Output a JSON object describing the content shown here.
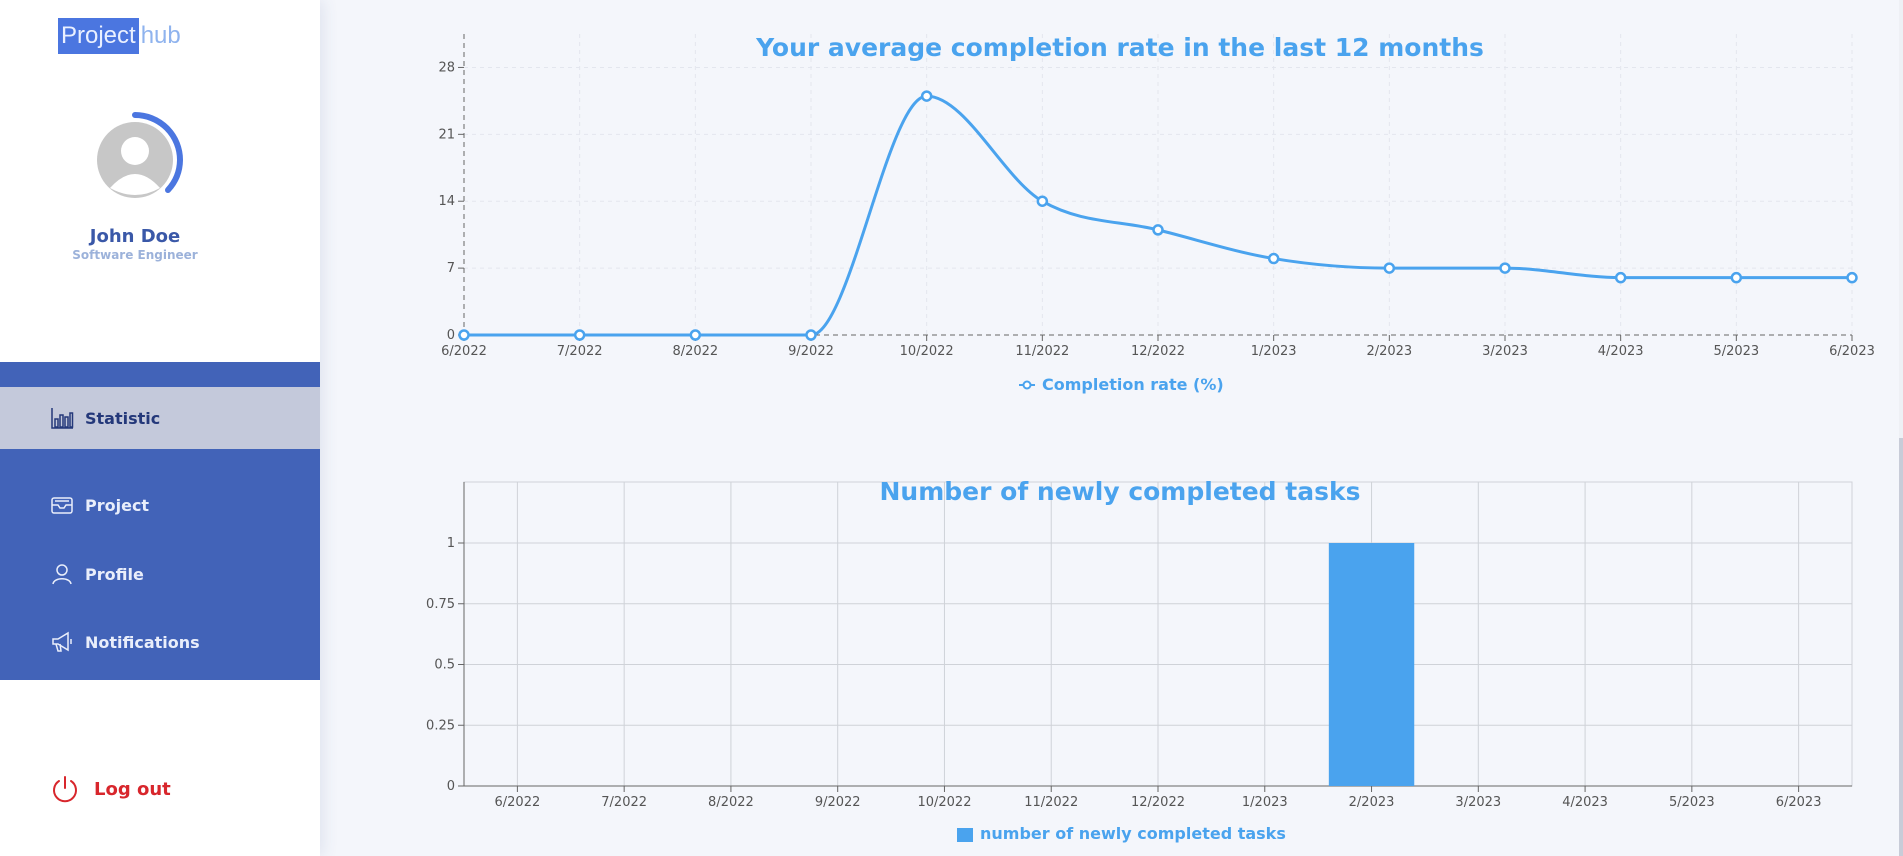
{
  "app": {
    "logo_part1": "Project",
    "logo_part2": "hub"
  },
  "user": {
    "name": "John Doe",
    "role": "Software Engineer"
  },
  "nav": {
    "items": [
      {
        "label": "Statistic",
        "icon": "bar-chart-icon",
        "active": true
      },
      {
        "label": "Project",
        "icon": "inbox-tray-icon",
        "active": false
      },
      {
        "label": "Profile",
        "icon": "user-icon",
        "active": false
      },
      {
        "label": "Notifications",
        "icon": "megaphone-icon",
        "active": false
      }
    ],
    "logout_label": "Log out"
  },
  "colors": {
    "accent": "#4aa3ee",
    "sidebar_blue": "#4263b8",
    "active_item": "#c4c9db",
    "logout_red": "#d8262c"
  },
  "chart_data": [
    {
      "type": "line",
      "title": "Your average completion rate in the last 12 months",
      "x": [
        "6/2022",
        "7/2022",
        "8/2022",
        "9/2022",
        "10/2022",
        "11/2022",
        "12/2022",
        "1/2023",
        "2/2023",
        "3/2023",
        "4/2023",
        "5/2023",
        "6/2023"
      ],
      "series": [
        {
          "name": "Completion rate (%)",
          "values": [
            0,
            0,
            0,
            0,
            25,
            14,
            11,
            8,
            7,
            7,
            6,
            6,
            6
          ]
        }
      ],
      "ylim": [
        0,
        31.5
      ],
      "yticks": [
        0,
        7,
        14,
        21,
        28
      ],
      "grid": true,
      "legend": "bottom-center"
    },
    {
      "type": "bar",
      "title": "Number of newly completed tasks",
      "categories": [
        "6/2022",
        "7/2022",
        "8/2022",
        "9/2022",
        "10/2022",
        "11/2022",
        "12/2022",
        "1/2023",
        "2/2023",
        "3/2023",
        "4/2023",
        "5/2023",
        "6/2023"
      ],
      "series": [
        {
          "name": "number of newly completed tasks",
          "values": [
            0,
            0,
            0,
            0,
            0,
            0,
            0,
            0,
            1,
            0,
            0,
            0,
            0
          ]
        }
      ],
      "ylim": [
        0,
        1
      ],
      "yticks": [
        0,
        0.25,
        0.5,
        0.75,
        1
      ],
      "grid": true,
      "legend": "bottom-center"
    }
  ]
}
